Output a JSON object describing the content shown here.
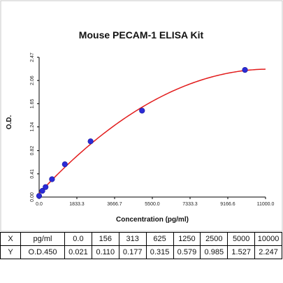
{
  "chart_data": {
    "type": "scatter",
    "title": "Mouse PECAM-1 ELISA Kit",
    "xlabel": "Concentration (pg/ml)",
    "ylabel": "O.D.",
    "xlim": [
      0.0,
      11000.0
    ],
    "ylim": [
      0.0,
      2.47
    ],
    "x_ticks": [
      "0.0",
      "1833.3",
      "3666.7",
      "5500.0",
      "7333.3",
      "9166.6",
      "11000.0"
    ],
    "y_ticks": [
      "0.00",
      "0.41",
      "0.82",
      "1.24",
      "1.65",
      "2.06",
      "2.47"
    ],
    "grid": false,
    "fit_line": "red curve",
    "series": [
      {
        "x": [
          0.0,
          156,
          313,
          625,
          1250,
          2500,
          5000,
          10000
        ],
        "y": [
          0.021,
          0.11,
          0.177,
          0.315,
          0.579,
          0.985,
          1.527,
          2.247
        ]
      }
    ],
    "colors": {
      "points": "#2b2bd6",
      "curve": "#e21b1b",
      "frame": "#c7c7c7"
    }
  },
  "table": {
    "rows": [
      {
        "label": "X",
        "unit": "pg/ml",
        "values": [
          "0.0",
          "156",
          "313",
          "625",
          "1250",
          "2500",
          "5000",
          "10000"
        ]
      },
      {
        "label": "Y",
        "unit": "O.D.450",
        "values": [
          "0.021",
          "0.110",
          "0.177",
          "0.315",
          "0.579",
          "0.985",
          "1.527",
          "2.247"
        ]
      }
    ]
  }
}
